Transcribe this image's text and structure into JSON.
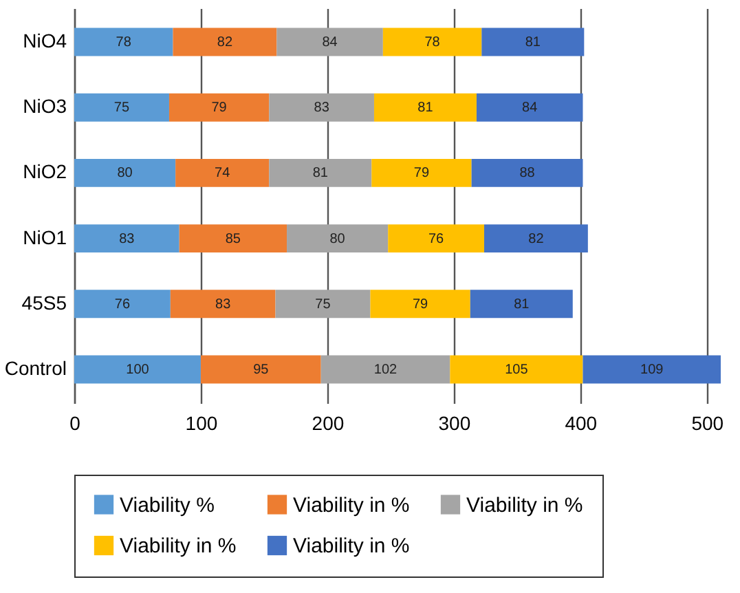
{
  "chart_data": {
    "type": "bar",
    "orientation": "horizontal",
    "stacked": true,
    "data_labels": true,
    "grid": "x",
    "legend": "bottom",
    "categories": [
      "NiO4",
      "NiO3",
      "NiO2",
      "NiO1",
      "45S5",
      "Control"
    ],
    "series": [
      {
        "name": "Viability %",
        "color": "#5b9bd5",
        "values": [
          78,
          75,
          80,
          83,
          76,
          100
        ]
      },
      {
        "name": "Viability in %",
        "color": "#ed7d31",
        "values": [
          82,
          79,
          74,
          85,
          83,
          95
        ]
      },
      {
        "name": "Viability in %",
        "color": "#a5a5a5",
        "values": [
          84,
          83,
          81,
          80,
          75,
          102
        ]
      },
      {
        "name": "Viability in %",
        "color": "#ffc000",
        "values": [
          78,
          81,
          79,
          76,
          79,
          105
        ]
      },
      {
        "name": "Viability in %",
        "color": "#4472c4",
        "values": [
          81,
          84,
          88,
          82,
          81,
          109
        ]
      }
    ],
    "xlim": [
      0,
      511
    ],
    "xticks": [
      0,
      100,
      200,
      300,
      400,
      500
    ]
  }
}
